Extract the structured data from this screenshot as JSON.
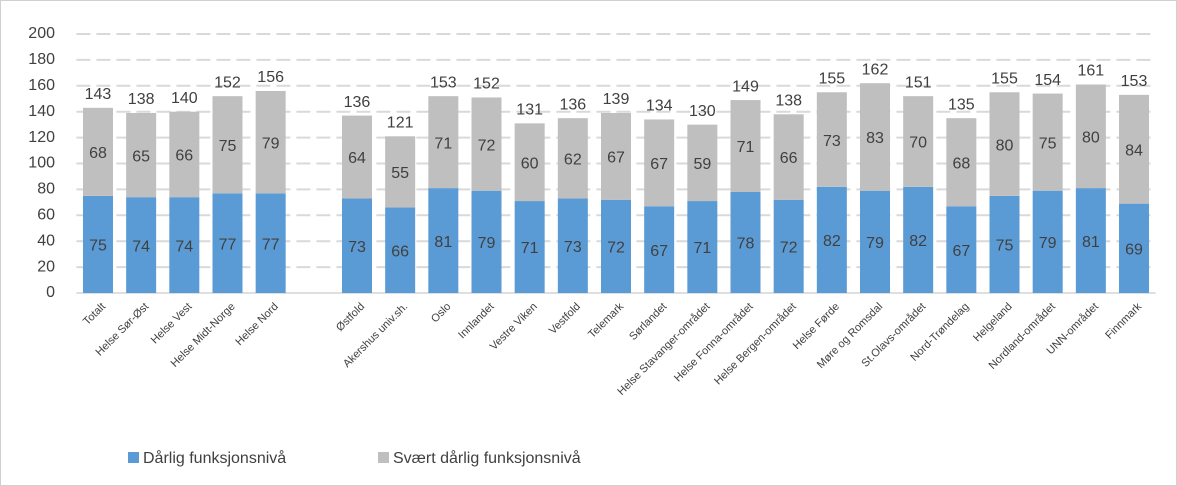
{
  "chart_data": {
    "type": "stacked_bar",
    "categories": [
      "Totalt",
      "Helse Sør-Øst",
      "Helse Vest",
      "Helse Midt-Norge",
      "Helse Nord",
      null,
      "Østfold",
      "Akershus univ.sh.",
      "Oslo",
      "Innlandet",
      "Vestre Viken",
      "Vestfold",
      "Telemark",
      "Sørlandet",
      "Helse Stavanger-området",
      "Helse Fonna-området",
      "Helse Bergen-området",
      "Helse Førde",
      "Møre og Romsdal",
      "St.Olavs-området",
      "Nord-Trøndelag",
      "Helgeland",
      "Nordland-området",
      "UNN-området",
      "Finnmark"
    ],
    "series": [
      {
        "name": "Dårlig funksjonsnivå",
        "color": "#5b9bd5",
        "values": [
          75,
          74,
          74,
          77,
          77,
          null,
          73,
          66,
          81,
          79,
          71,
          73,
          72,
          67,
          71,
          78,
          72,
          82,
          79,
          82,
          67,
          75,
          79,
          81,
          69
        ]
      },
      {
        "name": "Svært dårlig funksjonsnivå",
        "color": "#bfbfbf",
        "values": [
          68,
          65,
          66,
          75,
          79,
          null,
          64,
          55,
          71,
          72,
          60,
          62,
          67,
          67,
          59,
          71,
          66,
          73,
          83,
          70,
          68,
          80,
          75,
          80,
          84
        ]
      }
    ],
    "totals": [
      143,
      138,
      140,
      152,
      156,
      null,
      136,
      121,
      153,
      152,
      131,
      136,
      139,
      134,
      130,
      149,
      138,
      155,
      162,
      151,
      135,
      155,
      154,
      161,
      153
    ],
    "ylim": [
      0,
      200
    ],
    "yticks": [
      0,
      20,
      40,
      60,
      80,
      100,
      120,
      140,
      160,
      180,
      200
    ],
    "grid": true,
    "legend": "bottom"
  }
}
